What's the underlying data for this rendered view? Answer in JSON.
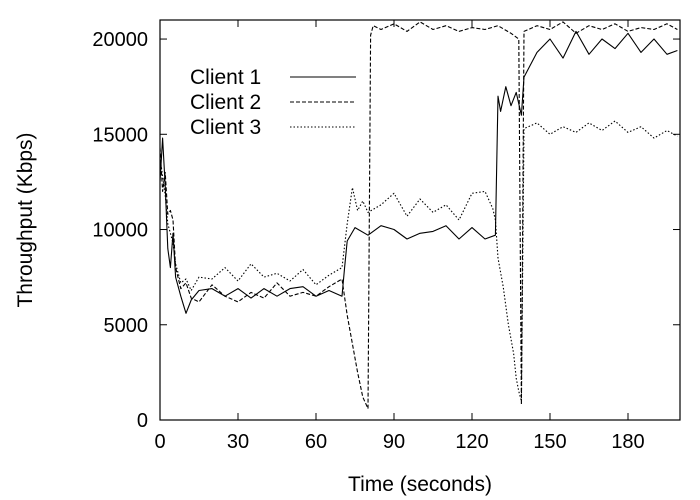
{
  "chart_data": {
    "type": "line",
    "title": "",
    "xlabel": "Time (seconds)",
    "ylabel": "Throughput (Kbps)",
    "xlim": [
      0,
      200
    ],
    "ylim": [
      0,
      21000
    ],
    "xticks": [
      0,
      30,
      60,
      90,
      120,
      150,
      180
    ],
    "yticks": [
      0,
      5000,
      10000,
      15000,
      20000
    ],
    "grid": false,
    "legend_position": "top-left",
    "series": [
      {
        "name": "Client 1",
        "style": "solid",
        "x": [
          0,
          1,
          2,
          3,
          4,
          5,
          6,
          8,
          10,
          12,
          15,
          20,
          25,
          30,
          35,
          40,
          45,
          50,
          55,
          60,
          65,
          70,
          71,
          72,
          75,
          80,
          85,
          90,
          95,
          100,
          105,
          110,
          115,
          120,
          125,
          129,
          130,
          131,
          133,
          135,
          137,
          139,
          140,
          145,
          150,
          155,
          160,
          165,
          170,
          175,
          180,
          185,
          190,
          195,
          199
        ],
        "y": [
          12500,
          14800,
          12300,
          9000,
          8000,
          9800,
          7500,
          6500,
          5600,
          6300,
          6800,
          6900,
          6500,
          6900,
          6400,
          6900,
          6500,
          6900,
          7000,
          6500,
          6800,
          6500,
          8000,
          9400,
          10100,
          9700,
          10200,
          10000,
          9500,
          9800,
          9900,
          10200,
          9500,
          10100,
          9500,
          9700,
          17000,
          16200,
          17500,
          16500,
          17200,
          16000,
          18000,
          19300,
          20000,
          19000,
          20400,
          19200,
          20000,
          19500,
          20300,
          19300,
          20000,
          19200,
          19400
        ]
      },
      {
        "name": "Client 2",
        "style": "dashed",
        "x": [
          0,
          1,
          2,
          3,
          4,
          5,
          6,
          8,
          10,
          12,
          15,
          20,
          25,
          30,
          35,
          40,
          45,
          50,
          55,
          60,
          65,
          70,
          72,
          74,
          76,
          78,
          80,
          81,
          82,
          85,
          90,
          95,
          100,
          105,
          110,
          115,
          120,
          125,
          130,
          135,
          138,
          139,
          140,
          145,
          150,
          155,
          160,
          165,
          170,
          175,
          180,
          185,
          190,
          195,
          199
        ],
        "y": [
          14300,
          12000,
          13000,
          10800,
          11000,
          10500,
          8000,
          6900,
          7200,
          6400,
          6200,
          7100,
          6500,
          6200,
          6700,
          6400,
          7200,
          6500,
          6700,
          6500,
          7000,
          7400,
          5500,
          4000,
          2500,
          1200,
          600,
          20200,
          20700,
          20500,
          20800,
          20400,
          20900,
          20500,
          20700,
          20400,
          20600,
          20500,
          20700,
          20300,
          20000,
          800,
          20400,
          20700,
          20500,
          20900,
          20300,
          20700,
          20500,
          20800,
          20400,
          20600,
          20500,
          20800,
          20500
        ]
      },
      {
        "name": "Client 3",
        "style": "dotted",
        "x": [
          0,
          1,
          2,
          3,
          4,
          5,
          6,
          8,
          10,
          12,
          15,
          20,
          25,
          30,
          35,
          40,
          45,
          50,
          55,
          60,
          65,
          70,
          72,
          74,
          76,
          78,
          80,
          85,
          90,
          95,
          100,
          105,
          110,
          115,
          120,
          125,
          128,
          129,
          130,
          132,
          134,
          136,
          137,
          138,
          139,
          140,
          145,
          150,
          155,
          160,
          165,
          170,
          175,
          180,
          185,
          190,
          195,
          199
        ],
        "y": [
          13800,
          12800,
          11800,
          10300,
          9800,
          9300,
          8200,
          7200,
          7400,
          6800,
          7500,
          7400,
          8000,
          7300,
          8200,
          7500,
          7700,
          7300,
          7900,
          7100,
          7600,
          8000,
          10300,
          12200,
          11000,
          11500,
          10900,
          11300,
          11900,
          10700,
          11600,
          10900,
          11300,
          10500,
          11900,
          12000,
          11100,
          10500,
          8500,
          7000,
          5000,
          3500,
          2200,
          1500,
          1000,
          15300,
          15600,
          15000,
          15400,
          15100,
          15600,
          15200,
          15700,
          15100,
          15400,
          14800,
          15200,
          14900
        ]
      }
    ]
  }
}
